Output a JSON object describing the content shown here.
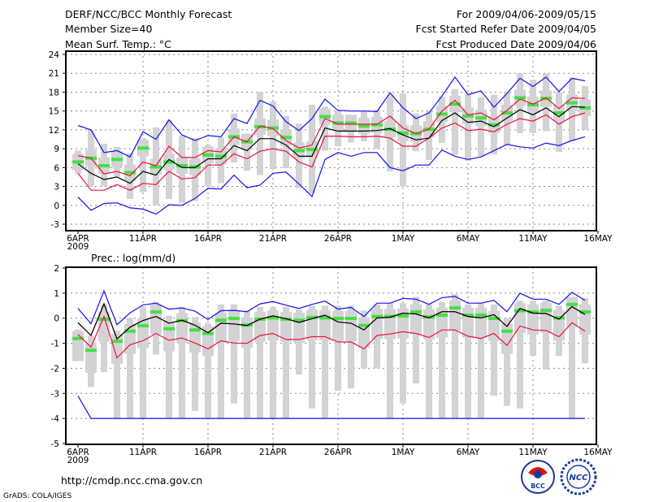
{
  "header": {
    "title": "DERF/NCC/BCC Monthly Forecast",
    "member_size": "Member Size=40",
    "variable": "Mean Surf. Temp.: °C",
    "period": "For 2009/04/06-2009/05/15",
    "started": "Fcst Started Refer Date 2009/04/05",
    "produced": "Fcst Produced Date 2009/04/06"
  },
  "footer": {
    "url": "http://cmdp.ncc.cma.gov.cn",
    "credit": "GrADS: COLA/IGES",
    "logos": [
      "BCC",
      "NCC"
    ]
  },
  "colors": {
    "box": "#d3d3d6",
    "green": "#44e044",
    "red": "#ee1133",
    "blue": "#1111ee",
    "mean": "#000000"
  },
  "chart_data": [
    {
      "type": "line",
      "title": "Mean Surf. Temp.: °C",
      "ylim": [
        -3,
        24
      ],
      "yticks": [
        24,
        21,
        18,
        15,
        12,
        9,
        6,
        3,
        0,
        -3
      ],
      "xticks": [
        "6APR",
        "11APR",
        "16APR",
        "21APR",
        "26APR",
        "1MAY",
        "6MAY",
        "11MAY",
        "16MAY"
      ],
      "xtick_year": "2009",
      "days": 40,
      "grid": true,
      "series": {
        "whisker_max": [
          8.7,
          12.0,
          9.8,
          9.3,
          8.3,
          10.7,
          12.4,
          13.5,
          11.1,
          10.7,
          9.6,
          10.8,
          14.6,
          10.7,
          18.0,
          16.5,
          14.2,
          13.0,
          16.0,
          15.7,
          15.0,
          14.0,
          15.0,
          15.2,
          17.6,
          17.8,
          14.6,
          15.0,
          17.3,
          18.5,
          17.7,
          17.2,
          17.6,
          18.0,
          21.0,
          20.0,
          21.0,
          18.0,
          20.3,
          19.0
        ],
        "whisker_min": [
          5.0,
          3.0,
          3.1,
          4.6,
          1.0,
          2.1,
          0.0,
          1.0,
          0.4,
          0.7,
          3.0,
          3.5,
          6.8,
          5.5,
          4.8,
          5.8,
          5.9,
          2.7,
          1.9,
          8.7,
          9.4,
          10.0,
          10.2,
          9.0,
          5.4,
          3.0,
          8.6,
          7.2,
          9.9,
          8.0,
          7.1,
          7.8,
          8.1,
          9.5,
          11.5,
          11.5,
          11.8,
          8.5,
          10.2,
          12.0
        ],
        "box_high": [
          8.2,
          8.8,
          7.6,
          8.6,
          6.5,
          10.4,
          7.4,
          8.2,
          7.6,
          7.4,
          9.3,
          9.1,
          12.2,
          11.4,
          13.8,
          13.6,
          12.1,
          10.0,
          10.2,
          15.4,
          14.4,
          14.4,
          13.9,
          14.1,
          13.4,
          12.8,
          12.7,
          13.4,
          15.8,
          17.4,
          15.5,
          15.2,
          14.1,
          16.0,
          18.4,
          17.3,
          18.3,
          16.0,
          17.6,
          16.8
        ],
        "box_low": [
          5.6,
          6.2,
          5.0,
          6.0,
          3.9,
          7.8,
          4.8,
          5.6,
          5.0,
          4.8,
          6.7,
          6.5,
          9.6,
          8.8,
          11.2,
          11.0,
          9.5,
          7.4,
          7.6,
          12.8,
          11.8,
          11.8,
          11.3,
          11.5,
          10.8,
          10.2,
          10.1,
          10.8,
          13.2,
          14.8,
          12.9,
          12.6,
          11.5,
          13.4,
          15.8,
          14.7,
          15.7,
          13.4,
          15.0,
          14.2
        ],
        "green": [
          6.9,
          7.5,
          6.3,
          7.3,
          5.2,
          9.1,
          6.1,
          6.9,
          6.3,
          6.1,
          8.0,
          7.8,
          10.9,
          10.1,
          12.5,
          12.3,
          10.8,
          8.7,
          8.9,
          14.1,
          13.1,
          13.1,
          12.6,
          12.8,
          12.1,
          11.5,
          11.4,
          12.1,
          14.5,
          16.1,
          14.2,
          13.9,
          12.8,
          14.7,
          17.1,
          16.0,
          17.0,
          14.7,
          16.3,
          15.5
        ],
        "blue_upper": [
          12.7,
          12.0,
          8.4,
          8.7,
          7.7,
          11.7,
          10.5,
          13.6,
          11.2,
          10.3,
          11.1,
          10.9,
          13.8,
          13.0,
          16.7,
          15.8,
          13.3,
          11.9,
          13.8,
          16.9,
          15.1,
          15.0,
          15.0,
          14.9,
          17.9,
          15.5,
          13.8,
          14.7,
          17.4,
          20.4,
          17.6,
          18.2,
          15.6,
          17.8,
          20.2,
          18.9,
          20.4,
          18.1,
          20.2,
          19.8
        ],
        "red_upper": [
          7.9,
          7.5,
          5.0,
          5.4,
          4.7,
          6.9,
          6.3,
          9.4,
          7.6,
          7.6,
          8.7,
          8.5,
          10.9,
          10.1,
          12.6,
          12.2,
          10.3,
          9.1,
          9.6,
          13.8,
          12.9,
          12.9,
          12.9,
          12.9,
          14.2,
          12.3,
          11.4,
          12.1,
          15.0,
          16.7,
          14.4,
          14.7,
          13.6,
          15.1,
          16.9,
          16.1,
          17.1,
          15.4,
          17.1,
          17.0
        ],
        "mean": [
          6.6,
          5.1,
          4.1,
          4.5,
          3.5,
          5.4,
          4.8,
          7.3,
          6.0,
          6.0,
          7.4,
          7.4,
          9.5,
          8.7,
          10.6,
          10.6,
          9.6,
          7.8,
          7.8,
          12.3,
          11.8,
          11.8,
          11.8,
          11.9,
          12.2,
          11.2,
          10.4,
          10.7,
          13.5,
          14.7,
          13.2,
          13.4,
          12.5,
          13.9,
          15.2,
          14.4,
          15.5,
          14.1,
          15.7,
          15.6
        ],
        "red_lower": [
          5.1,
          2.4,
          2.4,
          3.3,
          2.4,
          3.5,
          3.3,
          5.4,
          4.2,
          4.4,
          6.4,
          6.4,
          8.2,
          7.4,
          8.6,
          9.0,
          8.6,
          6.9,
          6.1,
          11.0,
          11.0,
          10.9,
          10.9,
          11.0,
          10.7,
          9.4,
          9.4,
          10.7,
          12.3,
          13.1,
          11.9,
          12.1,
          11.7,
          12.9,
          13.8,
          13.4,
          14.4,
          12.9,
          14.1,
          14.7
        ],
        "blue_lower": [
          1.3,
          -0.8,
          0.3,
          0.4,
          -0.4,
          -0.6,
          -1.4,
          0.1,
          0.0,
          1.1,
          2.7,
          2.6,
          4.8,
          2.8,
          3.2,
          5.1,
          5.3,
          3.4,
          1.4,
          7.3,
          8.4,
          7.8,
          8.4,
          8.4,
          6.0,
          5.5,
          6.4,
          6.4,
          8.8,
          7.8,
          7.3,
          7.7,
          8.7,
          9.7,
          9.3,
          9.1,
          9.9,
          9.5,
          10.3,
          10.9
        ]
      }
    },
    {
      "type": "line",
      "title": "Prec.: log(mm/d)",
      "ylim": [
        -5,
        2
      ],
      "yticks": [
        2,
        1,
        0,
        -1,
        -2,
        -3,
        -4,
        -5
      ],
      "xticks": [
        "6APR",
        "11APR",
        "16APR",
        "21APR",
        "26APR",
        "1MAY",
        "6MAY",
        "11MAY",
        "16MAY"
      ],
      "xtick_year": "2009",
      "days": 40,
      "grid": true,
      "series": {
        "whisker_max": [
          -0.45,
          -0.7,
          0.55,
          -0.5,
          0.0,
          0.45,
          0.65,
          0.1,
          0.45,
          0.05,
          -0.2,
          0.55,
          0.55,
          0.3,
          0.45,
          0.45,
          0.45,
          0.35,
          0.5,
          0.5,
          0.5,
          0.5,
          0.3,
          0.55,
          0.6,
          0.6,
          0.85,
          0.55,
          0.65,
          0.95,
          0.55,
          0.6,
          0.55,
          0.0,
          0.7,
          0.7,
          0.7,
          0.5,
          0.8,
          0.8
        ],
        "whisker_min": [
          -1.7,
          -2.75,
          -2.15,
          -4,
          -4,
          -4,
          -1.45,
          -4,
          -4,
          -3.7,
          -4,
          -4,
          -3.4,
          -4,
          -4,
          -4,
          -4,
          -2.25,
          -3.6,
          -4,
          -2.9,
          -2.8,
          -2.0,
          -2.0,
          -4,
          -3.4,
          -2.6,
          -4,
          -4,
          -4,
          -4,
          -4,
          -3.1,
          -3.5,
          -3.6,
          -1.5,
          -2.05,
          -1.5,
          -4,
          -1.8
        ],
        "box_high": [
          -0.51,
          -0.98,
          0.26,
          -0.62,
          -0.22,
          0.0,
          0.55,
          -0.12,
          0.2,
          -0.17,
          -0.31,
          0.22,
          0.29,
          0.02,
          0.26,
          0.31,
          0.26,
          0.22,
          0.33,
          0.31,
          0.29,
          0.29,
          0.01,
          0.37,
          0.37,
          0.39,
          0.55,
          0.35,
          0.42,
          0.71,
          0.42,
          0.42,
          0.29,
          -0.22,
          0.6,
          0.55,
          0.61,
          0.31,
          0.85,
          0.55
        ],
        "box_low": [
          -1.71,
          -2.18,
          -0.94,
          -1.82,
          -1.42,
          -1.2,
          -0.65,
          -1.32,
          -1.0,
          -1.37,
          -1.51,
          -0.98,
          -0.91,
          -1.18,
          -0.94,
          -0.89,
          -0.94,
          -0.98,
          -0.87,
          -0.89,
          -0.91,
          -0.91,
          -1.19,
          -0.83,
          -0.83,
          -0.81,
          -0.65,
          -0.85,
          -0.78,
          -0.49,
          -0.78,
          -0.78,
          -0.91,
          -1.42,
          -0.6,
          -0.65,
          -0.59,
          -0.89,
          -0.35,
          -0.65
        ],
        "green": [
          -0.81,
          -1.28,
          -0.04,
          -0.92,
          -0.52,
          -0.3,
          0.25,
          -0.42,
          -0.1,
          -0.47,
          -0.61,
          -0.08,
          -0.01,
          -0.28,
          -0.04,
          0.01,
          -0.04,
          -0.08,
          0.03,
          0.01,
          -0.01,
          -0.01,
          -0.29,
          0.07,
          0.07,
          0.09,
          0.25,
          0.05,
          0.12,
          0.41,
          0.12,
          0.12,
          -0.01,
          -0.52,
          0.3,
          0.25,
          0.31,
          0.01,
          0.55,
          0.25
        ],
        "blue_upper": [
          0.39,
          -0.22,
          1.09,
          -0.26,
          0.21,
          0.53,
          0.6,
          0.36,
          0.41,
          0.28,
          -0.05,
          0.3,
          0.31,
          0.26,
          0.57,
          0.66,
          0.52,
          0.39,
          0.55,
          0.68,
          0.36,
          0.43,
          0.07,
          0.6,
          0.6,
          0.79,
          0.76,
          0.55,
          0.82,
          0.87,
          0.6,
          0.6,
          0.71,
          0.26,
          1.0,
          0.76,
          0.76,
          0.55,
          1.03,
          0.71
        ],
        "red_upper": [
          -0.17,
          -0.69,
          0.57,
          -0.83,
          -0.36,
          -0.09,
          0.07,
          -0.2,
          -0.08,
          -0.28,
          -0.58,
          -0.2,
          -0.23,
          -0.29,
          -0.04,
          0.09,
          -0.02,
          -0.17,
          -0.02,
          0.12,
          -0.15,
          -0.2,
          -0.47,
          0.01,
          0.04,
          0.2,
          0.17,
          0.01,
          0.26,
          0.26,
          0.07,
          0.01,
          0.14,
          -0.33,
          0.39,
          0.2,
          0.19,
          -0.04,
          0.46,
          0.15
        ],
        "mean": [
          -0.18,
          -0.69,
          0.57,
          -0.83,
          -0.36,
          -0.09,
          0.07,
          -0.2,
          -0.08,
          -0.28,
          -0.58,
          -0.2,
          -0.23,
          -0.29,
          -0.04,
          0.09,
          -0.02,
          -0.17,
          -0.02,
          0.12,
          -0.15,
          -0.2,
          -0.47,
          0.01,
          0.04,
          0.2,
          0.17,
          0.01,
          0.26,
          0.26,
          0.07,
          0.01,
          0.14,
          -0.33,
          0.39,
          0.2,
          0.19,
          -0.04,
          0.46,
          0.15
        ],
        "red_lower": [
          -0.65,
          -1.15,
          0.07,
          -1.58,
          -1.06,
          -0.9,
          -0.61,
          -0.88,
          -0.79,
          -0.99,
          -1.22,
          -0.9,
          -0.99,
          -1.0,
          -0.69,
          -0.61,
          -0.85,
          -0.85,
          -0.74,
          -0.74,
          -0.95,
          -0.95,
          -1.22,
          -0.69,
          -0.63,
          -0.54,
          -0.61,
          -0.77,
          -0.47,
          -0.47,
          -0.72,
          -0.81,
          -0.61,
          -1.09,
          -0.31,
          -0.47,
          -0.49,
          -0.74,
          -0.18,
          -0.52
        ],
        "blue_lower": [
          -3.1,
          -4,
          -4,
          -4,
          -4,
          -4,
          -4,
          -4,
          -4,
          -4,
          -4,
          -4,
          -4,
          -4,
          -4,
          -4,
          -4,
          -4,
          -4,
          -4,
          -4,
          -4,
          -4,
          -4,
          -4,
          -4,
          -4,
          -4,
          -4,
          -4,
          -4,
          -4,
          -4,
          -4,
          -4,
          -4,
          -4,
          -4,
          -4,
          -4
        ]
      }
    }
  ]
}
